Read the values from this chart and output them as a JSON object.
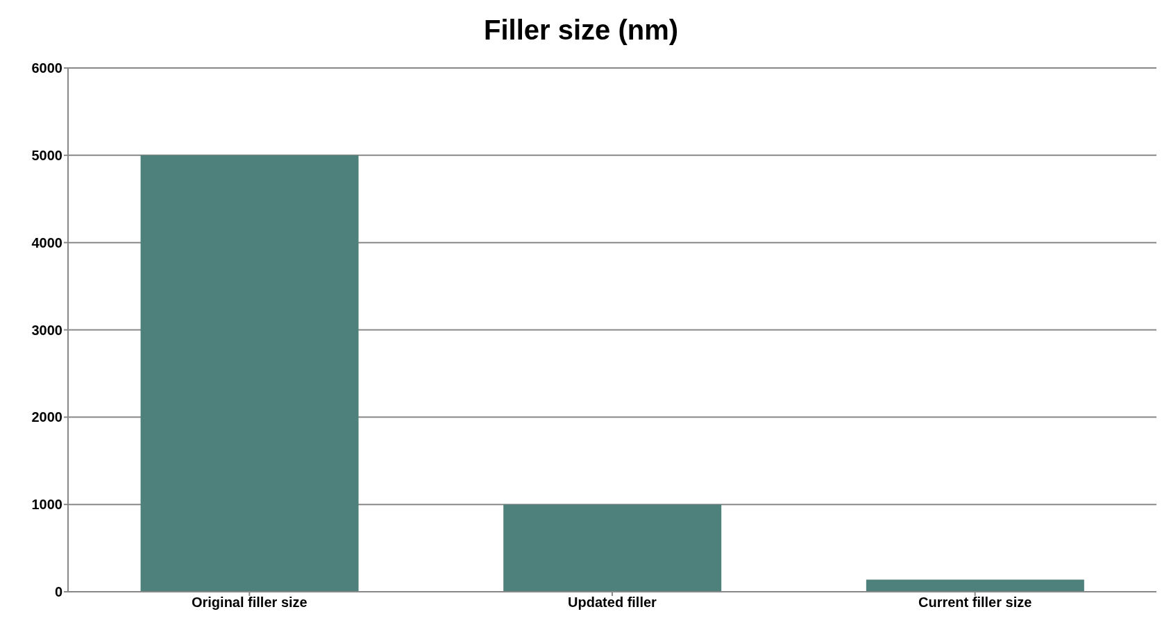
{
  "chart_data": {
    "type": "bar",
    "title": "Filler size (nm)",
    "categories": [
      "Original filler size",
      "Updated filler",
      "Current filler size"
    ],
    "values": [
      5000,
      1000,
      140
    ],
    "color": "#4e807c",
    "ylim": [
      0,
      6000
    ],
    "yticks": [
      0,
      1000,
      2000,
      3000,
      4000,
      5000,
      6000
    ],
    "grid": "y"
  }
}
